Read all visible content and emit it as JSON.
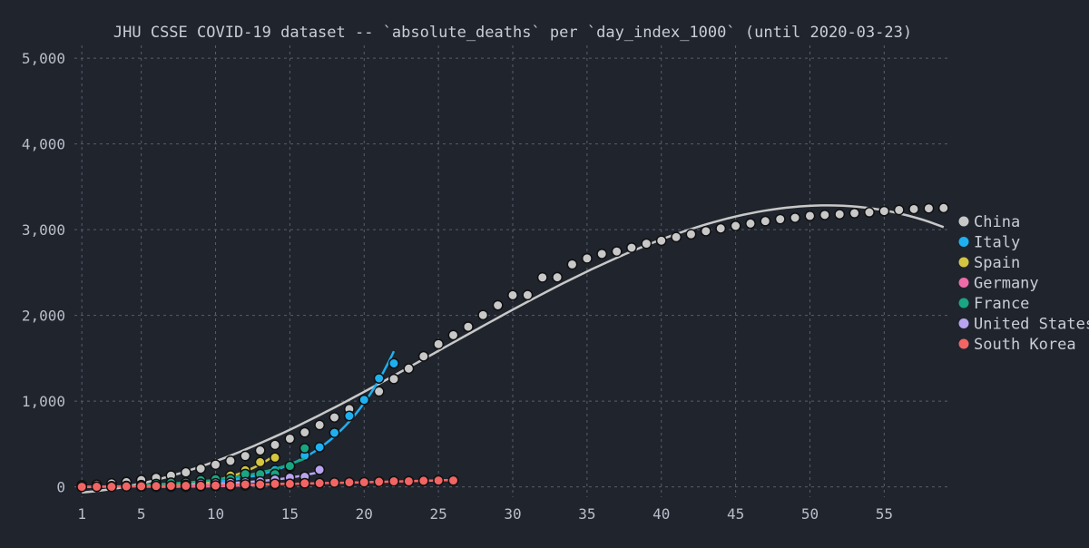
{
  "chart_data": {
    "type": "scatter",
    "title": "JHU CSSE COVID-19 dataset -- `absolute_deaths` per `day_index_1000` (until 2020-03-23)",
    "xlabel": "",
    "ylabel": "",
    "xlim": [
      0.5,
      59.5
    ],
    "ylim": [
      -120,
      5150
    ],
    "x_ticks": [
      1,
      5,
      10,
      15,
      20,
      25,
      30,
      35,
      40,
      45,
      50,
      55
    ],
    "x_tick_labels": [
      "1",
      "5",
      "10",
      "15",
      "20",
      "25",
      "30",
      "35",
      "40",
      "45",
      "50",
      "55"
    ],
    "y_ticks": [
      0,
      1000,
      2000,
      3000,
      4000,
      5000
    ],
    "y_tick_labels": [
      "0",
      "1,000",
      "2,000",
      "3,000",
      "4,000",
      "5,000"
    ],
    "grid": true,
    "legend_position": "right",
    "series": [
      {
        "name": "China",
        "color": "#c8c8c8",
        "x": [
          1,
          2,
          3,
          4,
          5,
          6,
          7,
          8,
          9,
          10,
          11,
          12,
          13,
          14,
          15,
          16,
          17,
          18,
          19,
          20,
          21,
          22,
          23,
          24,
          25,
          26,
          27,
          28,
          29,
          30,
          31,
          32,
          33,
          34,
          35,
          36,
          37,
          38,
          39,
          40,
          41,
          42,
          43,
          44,
          45,
          46,
          47,
          48,
          49,
          50,
          51,
          52,
          53,
          54,
          55,
          56,
          57,
          58,
          59
        ],
        "y": [
          17,
          25,
          41,
          56,
          80,
          106,
          132,
          170,
          213,
          259,
          304,
          361,
          425,
          490,
          563,
          636,
          722,
          811,
          908,
          1016,
          1113,
          1259,
          1380,
          1523,
          1665,
          1770,
          1868,
          2004,
          2118,
          2236,
          2238,
          2443,
          2445,
          2595,
          2665,
          2717,
          2746,
          2790,
          2837,
          2872,
          2914,
          2947,
          2983,
          3015,
          3044,
          3072,
          3100,
          3123,
          3139,
          3161,
          3172,
          3180,
          3193,
          3203,
          3217,
          3230,
          3241,
          3249,
          3253
        ],
        "fit_curve": true
      },
      {
        "name": "Italy",
        "color": "#1fb0f0",
        "x": [
          1,
          2,
          3,
          4,
          5,
          6,
          7,
          8,
          9,
          10,
          11,
          12,
          13,
          14,
          15,
          16,
          17,
          18,
          19,
          20,
          21,
          22
        ],
        "y": [
          2,
          3,
          7,
          10,
          12,
          17,
          21,
          29,
          34,
          52,
          79,
          107,
          148,
          197,
          233,
          366,
          463,
          631,
          827,
          1016,
          1266,
          1441
        ],
        "fit_curve": true
      },
      {
        "name": "Spain",
        "color": "#d4c640",
        "x": [
          6,
          7,
          8,
          9,
          10,
          11,
          12,
          13,
          14
        ],
        "y": [
          10,
          17,
          35,
          54,
          55,
          133,
          195,
          289,
          342
        ],
        "fit_curve": true
      },
      {
        "name": "Germany",
        "color": "#f06ba8",
        "x": [
          5,
          6,
          7,
          8,
          9,
          10,
          11,
          12,
          13,
          14,
          15
        ],
        "y": [
          2,
          2,
          3,
          3,
          7,
          9,
          11,
          17,
          24,
          28,
          44
        ],
        "fit_curve": true
      },
      {
        "name": "France",
        "color": "#18a683",
        "x": [
          5,
          6,
          7,
          8,
          9,
          10,
          11,
          12,
          13,
          14,
          15,
          16
        ],
        "y": [
          19,
          33,
          48,
          48,
          79,
          91,
          91,
          149,
          149,
          149,
          244,
          451
        ],
        "fit_curve": true
      },
      {
        "name": "United States",
        "color": "#b8a4f0",
        "x": [
          8,
          9,
          10,
          11,
          12,
          13,
          14,
          15,
          16,
          17
        ],
        "y": [
          22,
          36,
          40,
          47,
          54,
          63,
          85,
          108,
          118,
          200
        ],
        "fit_curve": true
      },
      {
        "name": "South Korea",
        "color": "#f26565",
        "x": [
          1,
          2,
          3,
          4,
          5,
          6,
          7,
          8,
          9,
          10,
          11,
          12,
          13,
          14,
          15,
          16,
          17,
          18,
          19,
          20,
          21,
          22,
          23,
          24,
          25,
          26
        ],
        "y": [
          1,
          2,
          2,
          6,
          8,
          10,
          12,
          13,
          13,
          16,
          17,
          28,
          28,
          35,
          35,
          42,
          44,
          50,
          53,
          54,
          60,
          66,
          66,
          72,
          75,
          75
        ],
        "fit_curve": true
      }
    ]
  }
}
